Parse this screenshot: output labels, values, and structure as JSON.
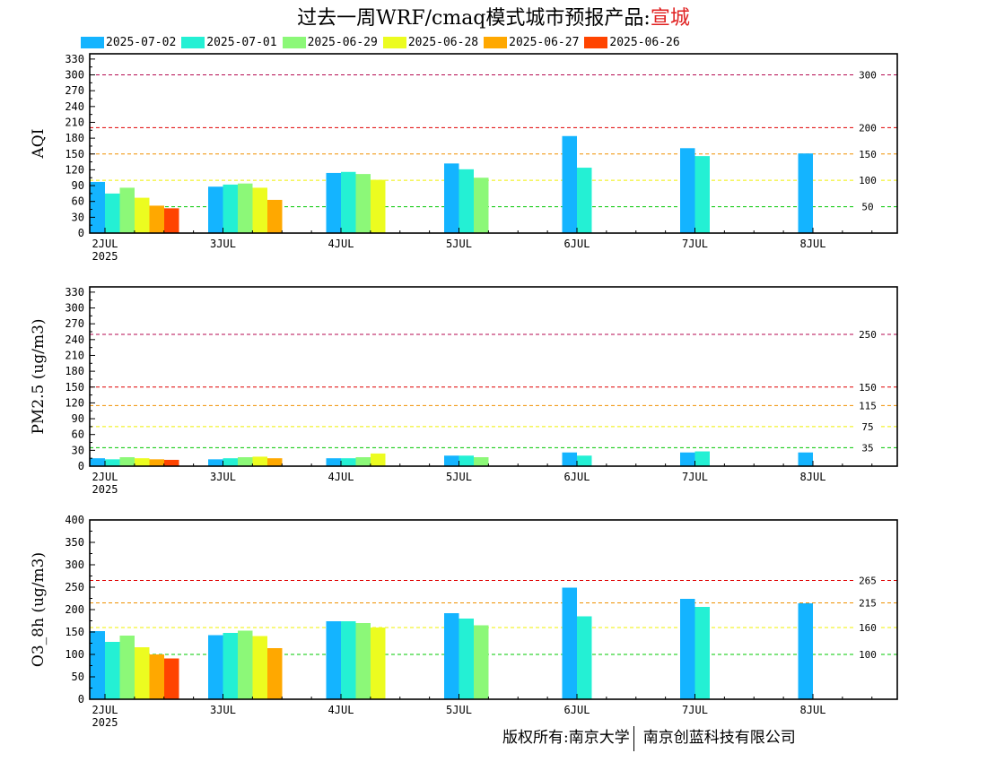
{
  "title": {
    "main": "过去一周WRF/cmaq模式城市预报产品:",
    "city": "宣城"
  },
  "legend": [
    {
      "label": "2025-07-02",
      "color": "#14b4ff"
    },
    {
      "label": "2025-07-01",
      "color": "#24f0d4"
    },
    {
      "label": "2025-06-29",
      "color": "#8cf878"
    },
    {
      "label": "2025-06-28",
      "color": "#ecfc20"
    },
    {
      "label": "2025-06-27",
      "color": "#ffa800"
    },
    {
      "label": "2025-06-26",
      "color": "#ff4400"
    }
  ],
  "chart_data": [
    {
      "type": "bar",
      "ylabel": "AQI",
      "ylim": [
        0,
        340
      ],
      "yticks": [
        0,
        30,
        60,
        90,
        120,
        150,
        180,
        210,
        240,
        270,
        300,
        330
      ],
      "xticks": [
        {
          "label": "2JUL",
          "sub": "2025"
        },
        {
          "label": "3JUL"
        },
        {
          "label": "4JUL"
        },
        {
          "label": "5JUL"
        },
        {
          "label": "6JUL"
        },
        {
          "label": "7JUL"
        },
        {
          "label": "8JUL"
        }
      ],
      "thresholds": [
        {
          "value": 300,
          "label": "300",
          "color": "#b40a50"
        },
        {
          "value": 200,
          "label": "200",
          "color": "#e00000"
        },
        {
          "value": 150,
          "label": "150",
          "color": "#f09000"
        },
        {
          "value": 100,
          "label": "100",
          "color": "#f0f000"
        },
        {
          "value": 50,
          "label": "50",
          "color": "#00c800"
        }
      ],
      "series": [
        {
          "name": "2025-07-02",
          "values": [
            97,
            88,
            114,
            132,
            184,
            161,
            151
          ]
        },
        {
          "name": "2025-07-01",
          "values": [
            75,
            92,
            116,
            121,
            124,
            146,
            null
          ]
        },
        {
          "name": "2025-06-29",
          "values": [
            86,
            94,
            112,
            105,
            null,
            null,
            null
          ]
        },
        {
          "name": "2025-06-28",
          "values": [
            67,
            86,
            101,
            null,
            null,
            null,
            null
          ]
        },
        {
          "name": "2025-06-27",
          "values": [
            52,
            63,
            null,
            null,
            null,
            null,
            null
          ]
        },
        {
          "name": "2025-06-26",
          "values": [
            47,
            null,
            null,
            null,
            null,
            null,
            null
          ]
        }
      ]
    },
    {
      "type": "bar",
      "ylabel": "PM2.5 (ug/m3)",
      "ylim": [
        0,
        340
      ],
      "yticks": [
        0,
        30,
        60,
        90,
        120,
        150,
        180,
        210,
        240,
        270,
        300,
        330
      ],
      "xticks": [
        {
          "label": "2JUL",
          "sub": "2025"
        },
        {
          "label": "3JUL"
        },
        {
          "label": "4JUL"
        },
        {
          "label": "5JUL"
        },
        {
          "label": "6JUL"
        },
        {
          "label": "7JUL"
        },
        {
          "label": "8JUL"
        }
      ],
      "thresholds": [
        {
          "value": 250,
          "label": "250",
          "color": "#b40a50"
        },
        {
          "value": 150,
          "label": "150",
          "color": "#e00000"
        },
        {
          "value": 115,
          "label": "115",
          "color": "#f09000"
        },
        {
          "value": 75,
          "label": "75",
          "color": "#f0f000"
        },
        {
          "value": 35,
          "label": "35",
          "color": "#00c800"
        }
      ],
      "series": [
        {
          "name": "2025-07-02",
          "values": [
            15,
            13,
            15,
            20,
            26,
            26,
            26
          ]
        },
        {
          "name": "2025-07-01",
          "values": [
            13,
            15,
            15,
            20,
            20,
            28,
            null
          ]
        },
        {
          "name": "2025-06-29",
          "values": [
            17,
            17,
            17,
            17,
            null,
            null,
            null
          ]
        },
        {
          "name": "2025-06-28",
          "values": [
            15,
            18,
            24,
            null,
            null,
            null,
            null
          ]
        },
        {
          "name": "2025-06-27",
          "values": [
            13,
            15,
            null,
            null,
            null,
            null,
            null
          ]
        },
        {
          "name": "2025-06-26",
          "values": [
            12,
            null,
            null,
            null,
            null,
            null,
            null
          ]
        }
      ]
    },
    {
      "type": "bar",
      "ylabel": "O3_8h (ug/m3)",
      "ylim": [
        0,
        400
      ],
      "yticks": [
        0,
        50,
        100,
        150,
        200,
        250,
        300,
        350,
        400
      ],
      "xticks": [
        {
          "label": "2JUL",
          "sub": "2025"
        },
        {
          "label": "3JUL"
        },
        {
          "label": "4JUL"
        },
        {
          "label": "5JUL"
        },
        {
          "label": "6JUL"
        },
        {
          "label": "7JUL"
        },
        {
          "label": "8JUL"
        }
      ],
      "thresholds": [
        {
          "value": 265,
          "label": "265",
          "color": "#e00000"
        },
        {
          "value": 215,
          "label": "215",
          "color": "#f09000"
        },
        {
          "value": 160,
          "label": "160",
          "color": "#f0f000"
        },
        {
          "value": 100,
          "label": "100",
          "color": "#00c800"
        }
      ],
      "series": [
        {
          "name": "2025-07-02",
          "values": [
            152,
            143,
            174,
            192,
            249,
            224,
            214
          ]
        },
        {
          "name": "2025-07-01",
          "values": [
            128,
            148,
            174,
            180,
            185,
            206,
            null
          ]
        },
        {
          "name": "2025-06-29",
          "values": [
            142,
            153,
            170,
            165,
            null,
            null,
            null
          ]
        },
        {
          "name": "2025-06-28",
          "values": [
            116,
            141,
            160,
            null,
            null,
            null,
            null
          ]
        },
        {
          "name": "2025-06-27",
          "values": [
            100,
            114,
            null,
            null,
            null,
            null,
            null
          ]
        },
        {
          "name": "2025-06-26",
          "values": [
            91,
            null,
            null,
            null,
            null,
            null,
            null
          ]
        }
      ]
    }
  ],
  "copyright": {
    "left": "版权所有:南京大学",
    "right": "南京创蓝科技有限公司"
  }
}
